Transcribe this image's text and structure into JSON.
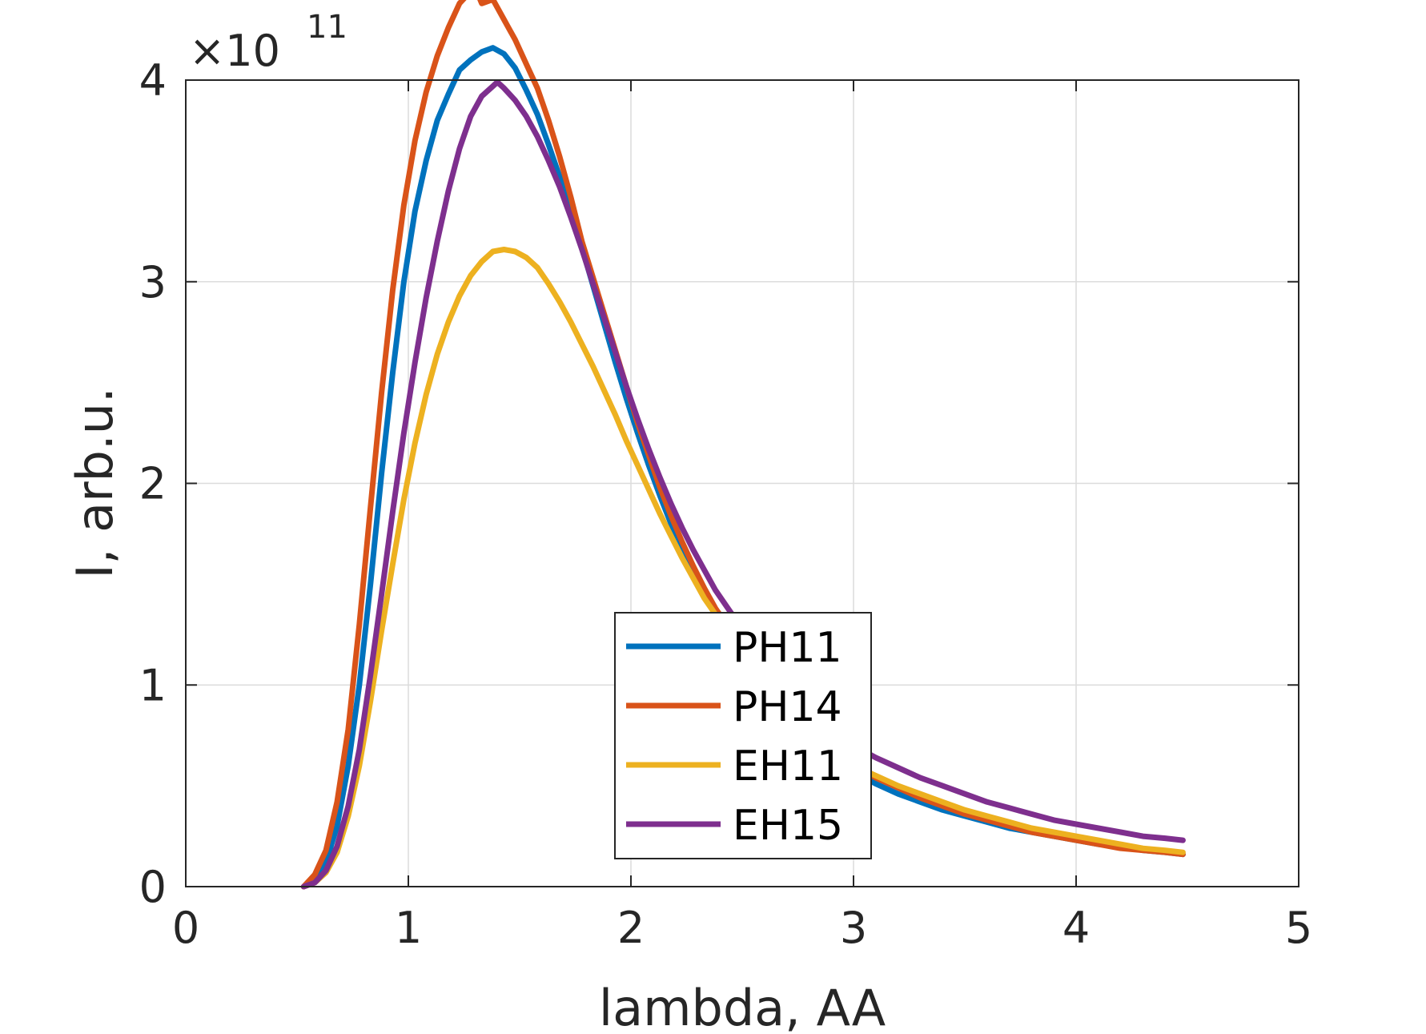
{
  "chart_data": {
    "type": "line",
    "xlabel": "lambda, AA",
    "ylabel": "I, arb.u.",
    "xlim": [
      0,
      5
    ],
    "ylim": [
      0,
      4
    ],
    "y_exponent_label": {
      "base": "×10",
      "power": "11"
    },
    "x_ticks": [
      "0",
      "1",
      "2",
      "3",
      "4",
      "5"
    ],
    "y_ticks": [
      "0",
      "1",
      "2",
      "3",
      "4"
    ],
    "grid": true,
    "legend_position": "bottom-center",
    "series": [
      {
        "name": "PH11",
        "color": "#0072BD",
        "x": [
          0.53,
          0.58,
          0.63,
          0.68,
          0.73,
          0.78,
          0.83,
          0.88,
          0.93,
          0.98,
          1.03,
          1.08,
          1.13,
          1.18,
          1.23,
          1.28,
          1.33,
          1.38,
          1.43,
          1.48,
          1.53,
          1.58,
          1.63,
          1.68,
          1.73,
          1.78,
          1.83,
          1.88,
          1.93,
          1.98,
          2.03,
          2.08,
          2.13,
          2.18,
          2.23,
          2.28,
          2.33,
          2.38,
          2.43,
          2.5,
          2.6,
          2.7,
          2.8,
          2.9,
          3.0,
          3.1,
          3.2,
          3.3,
          3.4,
          3.5,
          3.6,
          3.7,
          3.8,
          3.9,
          4.0,
          4.1,
          4.2,
          4.3,
          4.4,
          4.48
        ],
        "y": [
          0.0,
          0.04,
          0.12,
          0.3,
          0.6,
          1.0,
          1.5,
          2.05,
          2.55,
          3.0,
          3.35,
          3.6,
          3.8,
          3.93,
          4.05,
          4.1,
          4.14,
          4.16,
          4.13,
          4.06,
          3.95,
          3.83,
          3.68,
          3.52,
          3.35,
          3.17,
          2.98,
          2.79,
          2.6,
          2.42,
          2.25,
          2.09,
          1.94,
          1.8,
          1.68,
          1.56,
          1.46,
          1.37,
          1.29,
          0.95,
          0.85,
          0.76,
          0.68,
          0.62,
          0.57,
          0.51,
          0.46,
          0.42,
          0.38,
          0.35,
          0.32,
          0.29,
          0.27,
          0.25,
          0.23,
          0.21,
          0.2,
          0.18,
          0.17,
          0.16
        ]
      },
      {
        "name": "PH14",
        "color": "#D95319",
        "x": [
          0.53,
          0.58,
          0.63,
          0.68,
          0.73,
          0.78,
          0.83,
          0.88,
          0.93,
          0.98,
          1.03,
          1.08,
          1.13,
          1.18,
          1.23,
          1.28,
          1.3,
          1.33,
          1.38,
          1.43,
          1.48,
          1.53,
          1.58,
          1.63,
          1.68,
          1.73,
          1.78,
          1.83,
          1.88,
          1.93,
          1.98,
          2.03,
          2.08,
          2.13,
          2.18,
          2.23,
          2.28,
          2.33,
          2.38,
          2.43,
          2.5,
          2.6,
          2.7,
          2.8,
          2.9,
          3.0,
          3.1,
          3.2,
          3.3,
          3.4,
          3.5,
          3.6,
          3.7,
          3.8,
          3.9,
          4.0,
          4.1,
          4.2,
          4.3,
          4.4,
          4.48
        ],
        "y": [
          0.0,
          0.06,
          0.18,
          0.42,
          0.78,
          1.3,
          1.88,
          2.45,
          2.96,
          3.38,
          3.7,
          3.94,
          4.12,
          4.26,
          4.38,
          4.44,
          4.46,
          4.38,
          4.4,
          4.3,
          4.2,
          4.08,
          3.96,
          3.8,
          3.62,
          3.42,
          3.2,
          3.02,
          2.84,
          2.66,
          2.48,
          2.3,
          2.14,
          1.98,
          1.84,
          1.71,
          1.59,
          1.48,
          1.38,
          1.3,
          0.95,
          0.86,
          0.78,
          0.71,
          0.65,
          0.6,
          0.54,
          0.49,
          0.44,
          0.4,
          0.36,
          0.33,
          0.3,
          0.27,
          0.25,
          0.23,
          0.21,
          0.19,
          0.18,
          0.17,
          0.16
        ]
      },
      {
        "name": "EH11",
        "color": "#EDB120",
        "x": [
          0.53,
          0.58,
          0.63,
          0.68,
          0.73,
          0.78,
          0.83,
          0.88,
          0.93,
          0.98,
          1.03,
          1.08,
          1.13,
          1.18,
          1.23,
          1.28,
          1.33,
          1.38,
          1.43,
          1.48,
          1.53,
          1.58,
          1.63,
          1.68,
          1.73,
          1.78,
          1.83,
          1.88,
          1.93,
          1.98,
          2.03,
          2.08,
          2.13,
          2.18,
          2.23,
          2.28,
          2.33,
          2.38,
          2.5,
          2.6,
          2.7,
          2.8,
          2.9,
          3.0,
          3.1,
          3.2,
          3.3,
          3.4,
          3.5,
          3.6,
          3.7,
          3.8,
          3.9,
          4.0,
          4.1,
          4.2,
          4.3,
          4.4,
          4.48
        ],
        "y": [
          0.0,
          0.02,
          0.07,
          0.17,
          0.35,
          0.6,
          0.92,
          1.27,
          1.6,
          1.92,
          2.2,
          2.44,
          2.64,
          2.8,
          2.93,
          3.03,
          3.1,
          3.15,
          3.16,
          3.15,
          3.12,
          3.07,
          2.99,
          2.9,
          2.8,
          2.69,
          2.58,
          2.46,
          2.34,
          2.21,
          2.09,
          1.97,
          1.85,
          1.74,
          1.63,
          1.53,
          1.43,
          1.35,
          0.97,
          0.87,
          0.79,
          0.72,
          0.65,
          0.6,
          0.55,
          0.5,
          0.46,
          0.42,
          0.38,
          0.35,
          0.32,
          0.29,
          0.27,
          0.25,
          0.23,
          0.21,
          0.19,
          0.18,
          0.17
        ]
      },
      {
        "name": "EH15",
        "color": "#7E2F8E",
        "x": [
          0.53,
          0.58,
          0.63,
          0.68,
          0.73,
          0.78,
          0.83,
          0.88,
          0.93,
          0.98,
          1.03,
          1.08,
          1.13,
          1.18,
          1.23,
          1.28,
          1.33,
          1.38,
          1.4,
          1.43,
          1.48,
          1.53,
          1.58,
          1.63,
          1.68,
          1.73,
          1.78,
          1.83,
          1.88,
          1.93,
          1.98,
          2.03,
          2.08,
          2.13,
          2.18,
          2.23,
          2.28,
          2.33,
          2.38,
          2.43,
          2.48,
          2.6,
          2.7,
          2.8,
          2.9,
          3.0,
          3.1,
          3.2,
          3.3,
          3.4,
          3.5,
          3.6,
          3.7,
          3.8,
          3.9,
          4.0,
          4.1,
          4.2,
          4.3,
          4.4,
          4.48
        ],
        "y": [
          0.0,
          0.02,
          0.08,
          0.2,
          0.4,
          0.68,
          1.05,
          1.45,
          1.86,
          2.25,
          2.6,
          2.92,
          3.2,
          3.45,
          3.66,
          3.82,
          3.92,
          3.97,
          3.99,
          3.96,
          3.9,
          3.82,
          3.72,
          3.6,
          3.47,
          3.32,
          3.16,
          2.99,
          2.82,
          2.65,
          2.48,
          2.32,
          2.17,
          2.03,
          1.9,
          1.78,
          1.67,
          1.57,
          1.47,
          1.39,
          1.31,
          1.0,
          0.91,
          0.83,
          0.76,
          0.7,
          0.64,
          0.59,
          0.54,
          0.5,
          0.46,
          0.42,
          0.39,
          0.36,
          0.33,
          0.31,
          0.29,
          0.27,
          0.25,
          0.24,
          0.23
        ]
      }
    ]
  }
}
